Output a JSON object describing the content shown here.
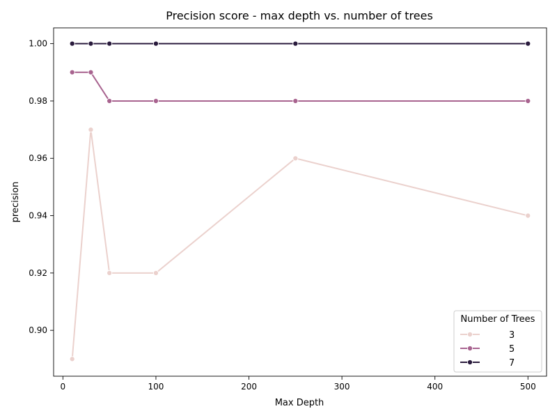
{
  "chart_data": {
    "type": "line",
    "title": "Precision score - max depth vs. number of trees",
    "xlabel": "Max Depth",
    "ylabel": "precision",
    "xlim": [
      -10,
      520
    ],
    "ylim": [
      0.884,
      1.0055
    ],
    "xticks": [
      0,
      100,
      200,
      300,
      400,
      500
    ],
    "yticks": [
      0.9,
      0.92,
      0.94,
      0.96,
      0.98,
      1.0
    ],
    "grid": false,
    "legend": {
      "title": "Number of Trees",
      "placement": "bottom-right"
    },
    "x": [
      10,
      30,
      50,
      100,
      250,
      500
    ],
    "series": [
      {
        "name": "3",
        "color": "#ebd1cd",
        "values": [
          0.89,
          0.97,
          0.92,
          0.92,
          0.96,
          0.94
        ]
      },
      {
        "name": "5",
        "color": "#a8638f",
        "values": [
          0.99,
          0.99,
          0.98,
          0.98,
          0.98,
          0.98
        ]
      },
      {
        "name": "7",
        "color": "#2a1b3d",
        "values": [
          1.0,
          1.0,
          1.0,
          1.0,
          1.0,
          1.0
        ]
      }
    ]
  }
}
